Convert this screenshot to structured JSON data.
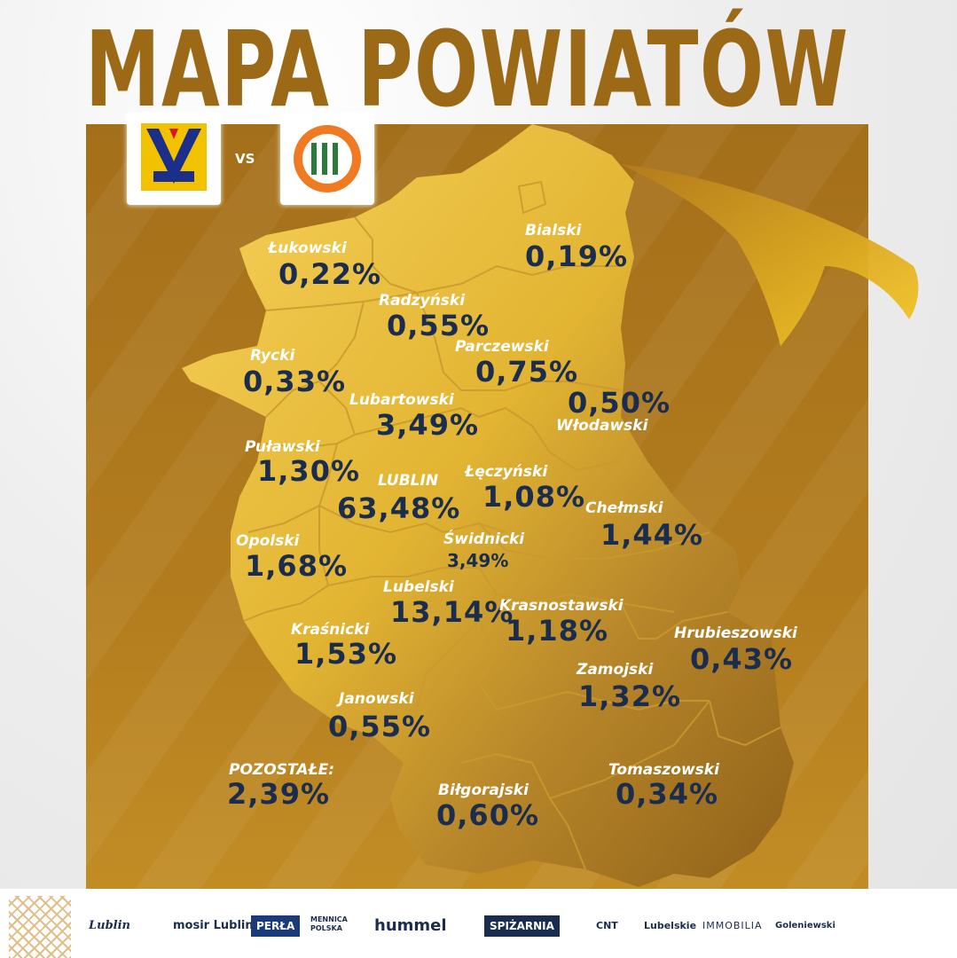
{
  "title": "MAPA POWIATÓW",
  "vs_label": "VS",
  "teams": {
    "home": {
      "name": "MOTOR"
    },
    "away": {
      "name": "ZAGŁĘBIE LUBIN SA"
    }
  },
  "colors": {
    "title": "#9c6a16",
    "value_text": "#1b2d4f",
    "label_text": "#ffffff",
    "map_light": "#f3c53a",
    "map_dark": "#8c5e14"
  },
  "districts": [
    {
      "id": "lukowski",
      "name": "Łukowski",
      "share": "0,22%"
    },
    {
      "id": "bialski",
      "name": "Bialski",
      "share": "0,19%"
    },
    {
      "id": "radzynski",
      "name": "Radzyński",
      "share": "0,55%"
    },
    {
      "id": "parczewski",
      "name": "Parczewski",
      "share": "0,75%"
    },
    {
      "id": "rycki",
      "name": "Rycki",
      "share": "0,33%"
    },
    {
      "id": "wlodawski",
      "name": "Włodawski",
      "share": "0,50%"
    },
    {
      "id": "lubartowski",
      "name": "Lubartowski",
      "share": "3,49%"
    },
    {
      "id": "pulawski",
      "name": "Puławski",
      "share": "1,30%"
    },
    {
      "id": "lublin",
      "name": "LUBLIN",
      "share": "63,48%"
    },
    {
      "id": "leczynski",
      "name": "Łęczyński",
      "share": "1,08%"
    },
    {
      "id": "chelmski",
      "name": "Chełmski",
      "share": "1,44%"
    },
    {
      "id": "opolski",
      "name": "Opolski",
      "share": "1,68%"
    },
    {
      "id": "swidnicki",
      "name": "Świdnicki",
      "share": "3,49%"
    },
    {
      "id": "lubelski",
      "name": "Lubelski",
      "share": "13,14%"
    },
    {
      "id": "krasnostawski",
      "name": "Krasnostawski",
      "share": "1,18%"
    },
    {
      "id": "hrubieszowski",
      "name": "Hrubieszowski",
      "share": "0,43%"
    },
    {
      "id": "krasnicki",
      "name": "Kraśnicki",
      "share": "1,53%"
    },
    {
      "id": "zamojski",
      "name": "Zamojski",
      "share": "1,32%"
    },
    {
      "id": "janowski",
      "name": "Janowski",
      "share": "0,55%"
    },
    {
      "id": "tomaszowski",
      "name": "Tomaszowski",
      "share": "0,34%"
    },
    {
      "id": "bilgorajski",
      "name": "Biłgorajski",
      "share": "0,60%"
    },
    {
      "id": "pozostale",
      "name": "POZOSTAŁE:",
      "share": "2,39%"
    }
  ],
  "sponsors": [
    {
      "name": "Lublin"
    },
    {
      "name": "mosir Lublin"
    },
    {
      "name": "PERŁA"
    },
    {
      "name": "MENNICA POLSKA"
    },
    {
      "name": "hummel"
    },
    {
      "name": "SPIŻARNIA"
    },
    {
      "name": "CNT"
    },
    {
      "name": "Lubelskie"
    },
    {
      "name": "IMMOBILIA"
    },
    {
      "name": "Goleniewski"
    }
  ]
}
